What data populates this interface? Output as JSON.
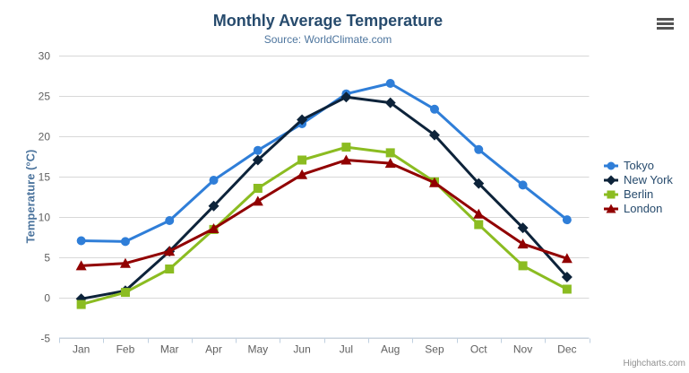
{
  "credits": {
    "label": "Highcharts.com"
  },
  "context_menu": {
    "icon": "hamburger-icon"
  },
  "chart_data": {
    "type": "line",
    "title": "Monthly Average Temperature",
    "subtitle": "Source: WorldClimate.com",
    "categories": [
      "Jan",
      "Feb",
      "Mar",
      "Apr",
      "May",
      "Jun",
      "Jul",
      "Aug",
      "Sep",
      "Oct",
      "Nov",
      "Dec"
    ],
    "series": [
      {
        "name": "Tokyo",
        "color": "#2f7ed8",
        "marker": "circle",
        "values": [
          7.0,
          6.9,
          9.5,
          14.5,
          18.2,
          21.5,
          25.2,
          26.5,
          23.3,
          18.3,
          13.9,
          9.6
        ]
      },
      {
        "name": "New York",
        "color": "#0d233a",
        "marker": "diamond",
        "values": [
          -0.2,
          0.8,
          5.7,
          11.3,
          17.0,
          22.0,
          24.8,
          24.1,
          20.1,
          14.1,
          8.6,
          2.5
        ]
      },
      {
        "name": "Berlin",
        "color": "#8bbc21",
        "marker": "square",
        "values": [
          -0.9,
          0.6,
          3.5,
          8.4,
          13.5,
          17.0,
          18.6,
          17.9,
          14.3,
          9.0,
          3.9,
          1.0
        ]
      },
      {
        "name": "London",
        "color": "#910000",
        "marker": "triangle",
        "values": [
          3.9,
          4.2,
          5.7,
          8.5,
          11.9,
          15.2,
          17.0,
          16.6,
          14.2,
          10.3,
          6.6,
          4.8
        ]
      }
    ],
    "xlabel": "",
    "ylabel": "Temperature (°C)",
    "ylim": [
      -5,
      30
    ],
    "ytick_interval": 5,
    "grid": true,
    "legend_position": "right",
    "theme": {
      "background": "#ffffff",
      "grid_line": "#d8d8d8",
      "axis_line": "#c0d0e0",
      "axis_label": "#606060",
      "title_color": "#274b6d",
      "subtitle_color": "#4d759e",
      "axis_title_color": "#4d759e",
      "legend_text": "#274b6d",
      "credits_color": "#909090"
    }
  }
}
